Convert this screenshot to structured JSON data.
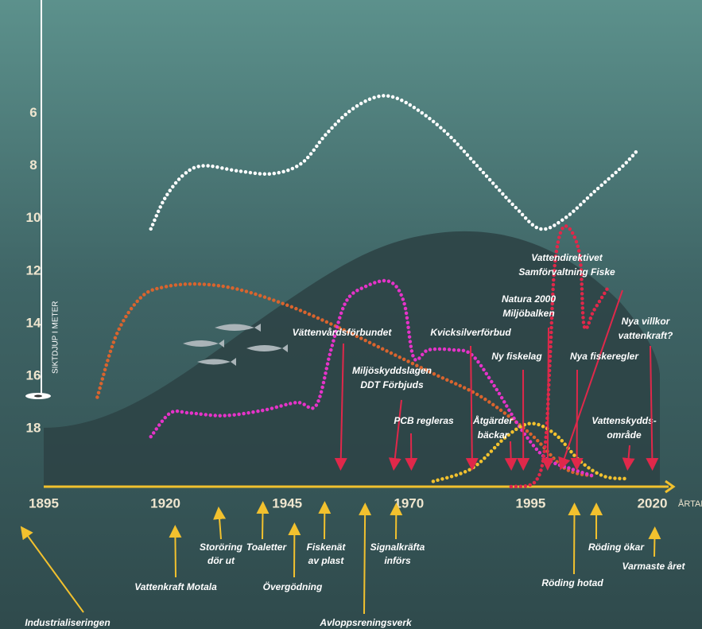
{
  "chart_data": {
    "type": "line",
    "y_axis_label": "SIKTDJUP I METER",
    "x_axis_label": "ÅRTAL",
    "xlim": [
      1895,
      2024
    ],
    "xticks": [
      1895,
      1920,
      1945,
      1970,
      1995,
      2020
    ],
    "ylim": [
      2,
      20.2
    ],
    "y_inverted": true,
    "yticks": [
      6,
      8,
      10,
      12,
      14,
      16,
      18
    ],
    "series": [
      {
        "color": "#ffffff",
        "x": [
          1917,
          1920,
          1924,
          1928,
          1935,
          1942,
          1948,
          1953,
          1958,
          1963,
          1967,
          1972,
          1978,
          1985,
          1992,
          1997,
          2002,
          2008,
          2014,
          2017
        ],
        "values": [
          10.4,
          9.2,
          8.3,
          8.0,
          8.2,
          8.3,
          7.9,
          6.8,
          5.9,
          5.4,
          5.4,
          5.9,
          6.8,
          8.2,
          9.6,
          10.4,
          10.0,
          9.0,
          8.0,
          7.4
        ]
      },
      {
        "color": "#d9642e",
        "x": [
          1906,
          1910,
          1915,
          1920,
          1927,
          1935,
          1945,
          1955,
          1965,
          1975,
          1985,
          1995,
          2002,
          2008
        ],
        "values": [
          16.8,
          14.4,
          13.0,
          12.6,
          12.5,
          12.7,
          13.3,
          14.1,
          15.0,
          15.9,
          16.8,
          18.2,
          19.5,
          19.8
        ]
      },
      {
        "color": "#e533c8",
        "x": [
          1917,
          1921,
          1925,
          1932,
          1940,
          1947,
          1951,
          1954,
          1957,
          1961,
          1966,
          1969,
          1971,
          1974,
          1979,
          1983,
          1988,
          1993,
          1998,
          2003,
          2008
        ],
        "values": [
          18.3,
          17.4,
          17.4,
          17.5,
          17.3,
          17.0,
          17.1,
          15.0,
          13.2,
          12.6,
          12.4,
          13.2,
          15.3,
          15.0,
          15.0,
          15.2,
          16.5,
          18.0,
          19.1,
          19.5,
          19.8
        ]
      },
      {
        "color": "#e0284a",
        "x": [
          1991,
          1996,
          1998,
          1999,
          2000,
          2002,
          2005,
          2006,
          2008,
          2011
        ],
        "values": [
          20.2,
          20.0,
          18.6,
          15.3,
          11.7,
          10.3,
          11.3,
          14.1,
          13.5,
          12.6
        ]
      },
      {
        "color": "#f2c12e",
        "x": [
          1975,
          1983,
          1990,
          1995,
          2000,
          2005,
          2010,
          2015
        ],
        "values": [
          20.0,
          19.5,
          18.3,
          17.8,
          18.2,
          19.2,
          19.8,
          19.9
        ]
      }
    ],
    "events_above": [
      {
        "year": 1956,
        "lines": [
          "Vättenvårdsförbundet"
        ]
      },
      {
        "year": 1967,
        "lines": [
          "Miljöskyddslagen",
          "DDT Förbjuds"
        ]
      },
      {
        "year": 1970.5,
        "lines": [
          "PCB regleras"
        ]
      },
      {
        "year": 1983,
        "lines": [
          "Kvicksilverförbud"
        ]
      },
      {
        "year": 1991,
        "lines": [
          "Åtgärder",
          "bäckar"
        ]
      },
      {
        "year": 1993.5,
        "lines": [
          "Ny fiskelag"
        ]
      },
      {
        "year": 1998.5,
        "lines": [
          "Natura 2000",
          "Miljöbalken"
        ]
      },
      {
        "year": 2001.5,
        "lines": [
          "Vattendirektivet",
          "Samförvaltning Fiske"
        ]
      },
      {
        "year": 2004.5,
        "lines": [
          "Nya fiskeregler"
        ]
      },
      {
        "year": 2015,
        "lines": [
          "Vattenskydds-",
          "område"
        ]
      },
      {
        "year": 2020,
        "lines": [
          "Nya villkor",
          "vattenkraft?"
        ]
      }
    ],
    "events_below": [
      {
        "year": 1891,
        "lines": [
          "Industrialiseringen"
        ]
      },
      {
        "year": 1922,
        "lines": [
          "Vattenkraft Motala"
        ]
      },
      {
        "year": 1931,
        "lines": [
          "Storöring",
          "dör ut"
        ]
      },
      {
        "year": 1940,
        "lines": [
          "Toaletter"
        ]
      },
      {
        "year": 1946.5,
        "lines": [
          "Övergödning"
        ]
      },
      {
        "year": 1952.7,
        "lines": [
          "Fiskenät",
          "av plast"
        ]
      },
      {
        "year": 1961,
        "lines": [
          "Avloppsreningsverk"
        ]
      },
      {
        "year": 1967.4,
        "lines": [
          "Signalkräfta",
          "införs"
        ]
      },
      {
        "year": 2004,
        "lines": [
          "Röding hotad"
        ]
      },
      {
        "year": 2008.5,
        "lines": [
          "Röding ökar"
        ]
      },
      {
        "year": 2020.5,
        "lines": [
          "Varmaste året"
        ]
      }
    ]
  }
}
